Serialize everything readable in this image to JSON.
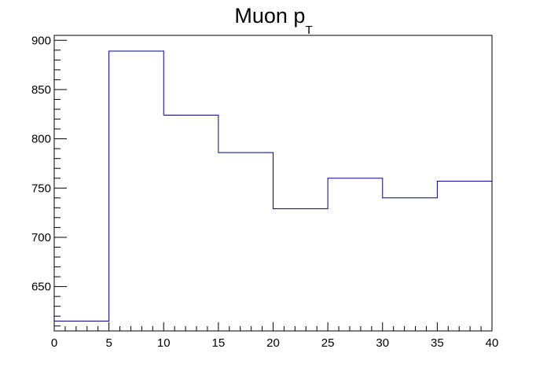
{
  "chart_data": {
    "type": "step",
    "title_main": "Muon p",
    "title_sub": "T",
    "xlabel": "",
    "ylabel": "",
    "xlim": [
      0,
      40
    ],
    "ylim": [
      605,
      905
    ],
    "x_ticks": [
      0,
      5,
      10,
      15,
      20,
      25,
      30,
      35,
      40
    ],
    "y_ticks": [
      650,
      700,
      750,
      800,
      850,
      900
    ],
    "bin_edges": [
      0,
      5,
      10,
      15,
      20,
      25,
      30,
      35,
      40
    ],
    "values": [
      615,
      889,
      824,
      786,
      729,
      760,
      740,
      757
    ],
    "line_color": "#00008b",
    "grid": false,
    "legend": "none"
  }
}
